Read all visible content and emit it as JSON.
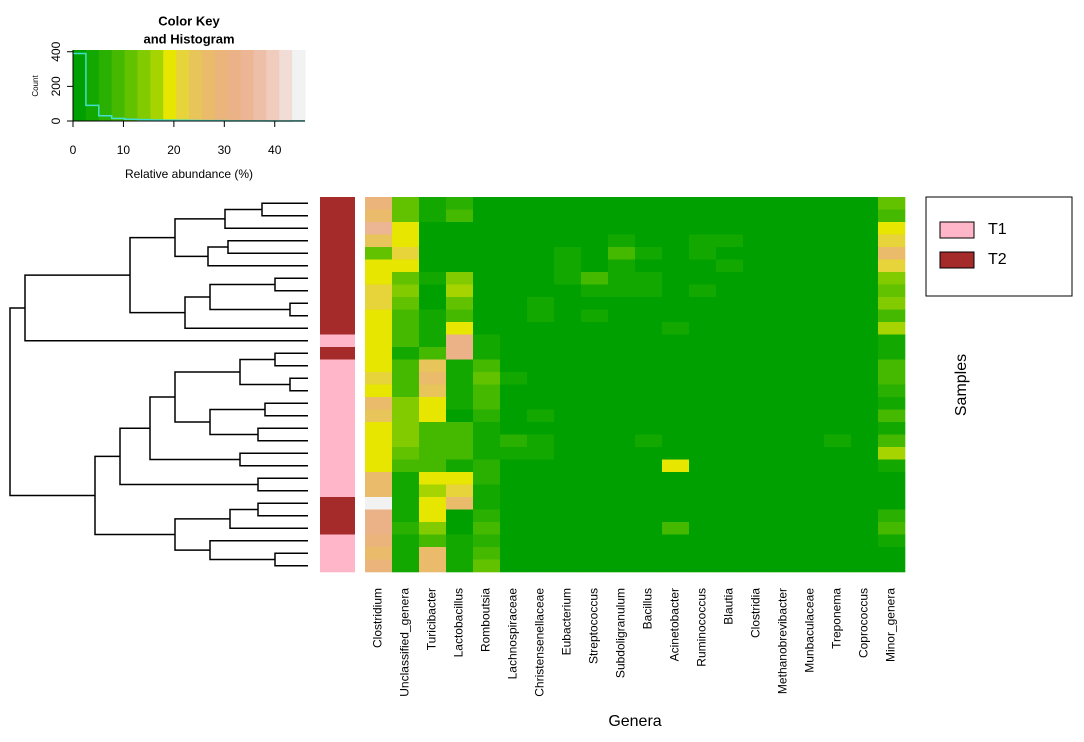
{
  "chart_data": {
    "type": "heatmap",
    "x_label": "Genera",
    "y_label": "Samples",
    "categories": [
      "Clostridium",
      "Unclassified_genera",
      "Turicibacter",
      "Lactobacillus",
      "Romboutsia",
      "Lachnospiraceae",
      "Christensenellaceae",
      "Eubacterium",
      "Streptococcus",
      "Subdoligranulum",
      "Bacillus",
      "Acinetobacter",
      "Ruminococcus",
      "Blautia",
      "Clostridia",
      "Methanobrevibacter",
      "Munbaculaceae",
      "Treponema",
      "Coprococcus",
      "Minor_genera"
    ],
    "row_groups": [
      "T2",
      "T2",
      "T2",
      "T2",
      "T2",
      "T2",
      "T2",
      "T2",
      "T2",
      "T2",
      "T2",
      "T1",
      "T2",
      "T1",
      "T1",
      "T1",
      "T1",
      "T1",
      "T1",
      "T1",
      "T1",
      "T1",
      "T1",
      "T1",
      "T2",
      "T2",
      "T2",
      "T1",
      "T1",
      "T1"
    ],
    "group_legend": [
      {
        "name": "T1",
        "color": "#ffb6c8"
      },
      {
        "name": "T2",
        "color": "#a52a2a"
      }
    ],
    "values": [
      [
        30,
        12,
        4,
        6,
        0,
        0,
        0,
        0,
        0,
        1,
        0,
        0,
        0,
        2,
        0,
        0,
        0,
        0,
        0,
        12
      ],
      [
        28,
        12,
        4,
        8,
        0,
        0,
        0,
        0,
        0,
        2,
        0,
        0,
        2,
        0,
        0,
        0,
        0,
        0,
        0,
        8
      ],
      [
        35,
        18,
        0,
        0,
        0,
        0,
        2,
        0,
        0,
        0,
        0,
        0,
        0,
        0,
        0,
        0,
        0,
        0,
        0,
        20
      ],
      [
        25,
        20,
        0,
        2,
        0,
        0,
        0,
        0,
        0,
        5,
        0,
        0,
        3,
        3,
        0,
        0,
        0,
        0,
        0,
        22
      ],
      [
        12,
        22,
        0,
        2,
        0,
        0,
        0,
        3,
        0,
        8,
        3,
        0,
        3,
        2,
        2,
        0,
        0,
        0,
        0,
        26
      ],
      [
        18,
        20,
        0,
        0,
        0,
        0,
        0,
        3,
        0,
        3,
        0,
        0,
        0,
        3,
        0,
        0,
        0,
        0,
        0,
        22
      ],
      [
        20,
        12,
        4,
        14,
        0,
        0,
        0,
        3,
        8,
        3,
        3,
        0,
        0,
        0,
        0,
        0,
        0,
        0,
        0,
        14
      ],
      [
        22,
        14,
        2,
        16,
        0,
        0,
        0,
        0,
        3,
        3,
        3,
        0,
        3,
        0,
        2,
        0,
        0,
        0,
        0,
        12
      ],
      [
        22,
        12,
        2,
        12,
        0,
        0,
        3,
        0,
        0,
        0,
        0,
        0,
        0,
        0,
        0,
        0,
        0,
        0,
        0,
        14
      ],
      [
        20,
        8,
        4,
        10,
        0,
        0,
        3,
        0,
        4,
        0,
        0,
        0,
        0,
        0,
        0,
        0,
        0,
        0,
        0,
        10
      ],
      [
        18,
        10,
        4,
        20,
        2,
        0,
        0,
        0,
        0,
        0,
        0,
        4,
        0,
        0,
        0,
        0,
        0,
        0,
        0,
        16
      ],
      [
        18,
        8,
        4,
        33,
        4,
        2,
        0,
        0,
        0,
        0,
        0,
        0,
        0,
        0,
        0,
        2,
        0,
        0,
        0,
        3
      ],
      [
        20,
        4,
        8,
        33,
        3,
        0,
        0,
        0,
        0,
        0,
        2,
        0,
        0,
        0,
        0,
        0,
        0,
        0,
        0,
        3
      ],
      [
        18,
        10,
        25,
        4,
        10,
        2,
        0,
        0,
        0,
        0,
        0,
        0,
        0,
        0,
        0,
        0,
        0,
        0,
        0,
        8
      ],
      [
        22,
        10,
        27,
        4,
        12,
        3,
        0,
        0,
        0,
        0,
        0,
        0,
        0,
        0,
        0,
        0,
        0,
        0,
        0,
        8
      ],
      [
        20,
        10,
        24,
        4,
        10,
        0,
        0,
        2,
        0,
        0,
        0,
        0,
        0,
        0,
        0,
        0,
        0,
        0,
        0,
        6
      ],
      [
        28,
        14,
        20,
        3,
        8,
        0,
        0,
        0,
        0,
        0,
        0,
        0,
        0,
        0,
        0,
        0,
        0,
        0,
        0,
        4
      ],
      [
        25,
        14,
        20,
        2,
        6,
        0,
        3,
        0,
        0,
        0,
        0,
        0,
        0,
        0,
        0,
        0,
        0,
        0,
        0,
        8
      ],
      [
        20,
        14,
        8,
        8,
        4,
        0,
        0,
        0,
        0,
        0,
        0,
        0,
        0,
        0,
        0,
        0,
        0,
        0,
        0,
        3
      ],
      [
        18,
        14,
        10,
        10,
        3,
        6,
        4,
        0,
        0,
        0,
        3,
        0,
        0,
        0,
        0,
        2,
        0,
        3,
        0,
        8
      ],
      [
        20,
        12,
        8,
        8,
        4,
        4,
        5,
        2,
        0,
        0,
        0,
        0,
        0,
        0,
        0,
        0,
        0,
        0,
        0,
        16
      ],
      [
        18,
        10,
        10,
        3,
        6,
        0,
        0,
        0,
        0,
        0,
        0,
        20,
        0,
        0,
        0,
        2,
        0,
        0,
        0,
        4
      ],
      [
        26,
        3,
        20,
        20,
        6,
        0,
        0,
        0,
        0,
        0,
        0,
        0,
        0,
        0,
        0,
        0,
        0,
        0,
        0,
        2
      ],
      [
        26,
        3,
        16,
        22,
        4,
        2,
        0,
        0,
        0,
        0,
        0,
        0,
        0,
        0,
        0,
        0,
        0,
        0,
        0,
        2
      ],
      [
        45,
        3,
        18,
        26,
        4,
        0,
        0,
        0,
        0,
        0,
        0,
        0,
        0,
        0,
        0,
        0,
        0,
        0,
        0,
        2
      ],
      [
        32,
        4,
        20,
        0,
        6,
        0,
        0,
        0,
        0,
        0,
        0,
        0,
        0,
        0,
        0,
        0,
        0,
        0,
        0,
        6
      ],
      [
        32,
        6,
        14,
        2,
        8,
        0,
        0,
        0,
        0,
        0,
        0,
        8,
        0,
        0,
        0,
        0,
        0,
        0,
        0,
        8
      ],
      [
        30,
        3,
        8,
        3,
        6,
        2,
        0,
        0,
        0,
        0,
        0,
        0,
        0,
        0,
        0,
        0,
        0,
        0,
        0,
        4
      ],
      [
        26,
        3,
        28,
        3,
        8,
        2,
        0,
        0,
        0,
        0,
        0,
        0,
        0,
        0,
        0,
        0,
        0,
        0,
        0,
        2
      ],
      [
        30,
        3,
        28,
        3,
        12,
        0,
        0,
        0,
        0,
        0,
        0,
        0,
        0,
        0,
        0,
        0,
        0,
        0,
        0,
        2
      ]
    ],
    "color_key": {
      "title": [
        "Color Key",
        "and Histogram"
      ],
      "xlabel": "Relative abundance (%)",
      "ylabel": "Count",
      "zlim": [
        0,
        46
      ],
      "xticks": [
        0,
        10,
        20,
        30,
        40
      ],
      "colors": [
        "#00a000",
        "#13a800",
        "#2ab000",
        "#45b900",
        "#62c200",
        "#82cb00",
        "#a5d400",
        "#e6e600",
        "#e7d33a",
        "#e8c55a",
        "#e9bb6b",
        "#eab47a",
        "#ebb287",
        "#ecb593",
        "#eebfa8",
        "#f0ccbd",
        "#f2ddd6",
        "#f2f2f2"
      ],
      "counts": [
        390,
        90,
        30,
        15,
        10,
        8,
        6,
        5,
        4,
        3,
        2,
        2,
        1,
        1,
        1,
        0,
        0,
        1
      ],
      "ylim": [
        0,
        410
      ],
      "yticks": [
        0,
        200,
        400
      ],
      "line_color": "#40e0d0"
    }
  }
}
